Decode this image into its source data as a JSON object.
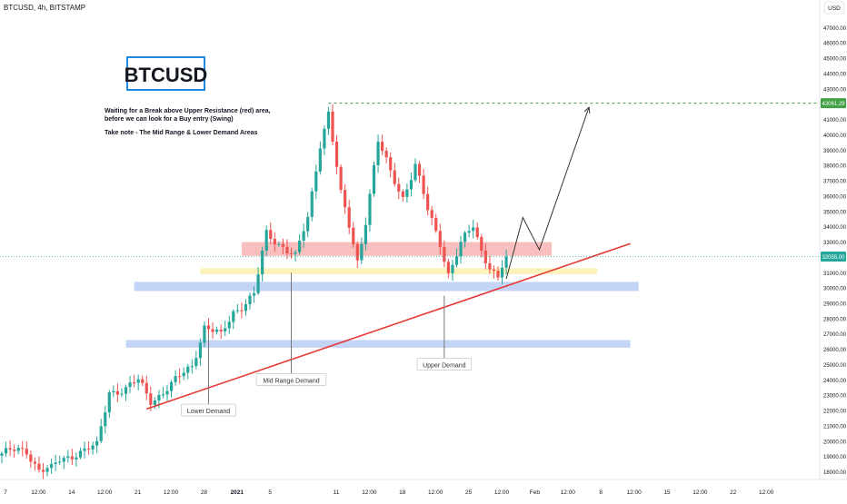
{
  "header": {
    "symbol_info": "BTCUSD, 4h, BITSTAMP"
  },
  "annotations": {
    "logo_text": "BTCUSD",
    "note_line1": "Waiting for a Break above Upper Resistance (red) area,",
    "note_line2": "before we can look for a Buy entry (Swing)",
    "note_line3": "Take note - The Mid Range & Lower Demand Areas",
    "labels": {
      "lower_demand": "Lower Demand",
      "mid_range_demand": "Mid Range Demand",
      "upper_demand": "Upper Demand"
    }
  },
  "colors": {
    "up": "#26a69a",
    "down": "#ef5350",
    "trendline": "#e53935",
    "resistance_zone": "#f8b4b4",
    "mid_zone": "#fdf0b0",
    "demand_zone": "#b9ccf4",
    "target_line": "#43a047",
    "current_line": "#26a69a",
    "logo_border": "#1e88e5"
  },
  "chart_data": {
    "type": "candlestick",
    "title": "",
    "xlabel": "",
    "ylabel": "",
    "currency_label": "USD",
    "ylim": [
      17500,
      48800
    ],
    "y_ticks": [
      18000,
      19000,
      20000,
      21000,
      22000,
      23000,
      24000,
      25000,
      26000,
      27000,
      28000,
      29000,
      30000,
      31000,
      32000,
      33000,
      34000,
      35000,
      36000,
      37000,
      38000,
      39000,
      40000,
      41000,
      42000,
      43000,
      44000,
      45000,
      46000,
      47000
    ],
    "y_tick_labels": [
      "18000.00",
      "19000.00",
      "20000.00",
      "21000.00",
      "22000.00",
      "23000.00",
      "24000.00",
      "25000.00",
      "26000.00",
      "27000.00",
      "28000.00",
      "29000.00",
      "30000.00",
      "31000.00",
      "32000.00",
      "33000.00",
      "34000.00",
      "35000.00",
      "36000.00",
      "37000.00",
      "38000.00",
      "39000.00",
      "40000.00",
      "41000.00",
      "42000.00",
      "43000.00",
      "44000.00",
      "45000.00",
      "46000.00",
      "47000.00"
    ],
    "x_tick_labels": [
      "7",
      "12:00",
      "14",
      "12:00",
      "21",
      "12:00",
      "28",
      "2021",
      "5",
      "11",
      "12:00",
      "18",
      "12:00",
      "25",
      "12:00",
      "Feb",
      "12:00",
      "8",
      "12:00",
      "15",
      "12:00",
      "22",
      "12:00"
    ],
    "x_tick_pos": [
      0,
      8,
      16,
      24,
      32,
      40,
      48,
      56,
      64,
      80,
      88,
      96,
      104,
      112,
      120,
      128,
      136,
      144,
      152,
      160,
      168,
      176,
      184
    ],
    "current_price_label": "32055.00",
    "target_price_label": "42061.29",
    "target_price": 42061.29,
    "current_price": 32055,
    "zones": [
      {
        "name": "Upper Resistance",
        "x_from": 58,
        "x_to": 133,
        "y_from": 32100,
        "y_to": 33000,
        "color_key": "resistance_zone"
      },
      {
        "name": "Mid Range",
        "x_from": 48,
        "x_to": 144,
        "y_from": 30900,
        "y_to": 31300,
        "color_key": "mid_zone"
      },
      {
        "name": "Upper Demand",
        "x_from": 32,
        "x_to": 154,
        "y_from": 29800,
        "y_to": 30400,
        "color_key": "demand_zone"
      },
      {
        "name": "Lower Demand",
        "x_from": 30,
        "x_to": 152,
        "y_from": 26100,
        "y_to": 26600,
        "color_key": "demand_zone"
      }
    ],
    "trendline": {
      "x1": 35,
      "y1": 22100,
      "x2": 152,
      "y2": 32900
    },
    "projection": [
      {
        "x": 122,
        "y": 30600
      },
      {
        "x": 126,
        "y": 34600
      },
      {
        "x": 130,
        "y": 32500
      },
      {
        "x": 142,
        "y": 41800
      }
    ],
    "label_positions": [
      {
        "key": "lower_demand",
        "x": 50,
        "y": 22000,
        "line_top_y": 27000
      },
      {
        "key": "mid_range_demand",
        "x": 70,
        "y": 24000,
        "line_top_y": 31000
      },
      {
        "key": "upper_demand",
        "x": 107,
        "y": 25000,
        "line_top_y": 29500
      }
    ],
    "anchors": [
      {
        "i": 0,
        "p": 19200
      },
      {
        "i": 6,
        "p": 19400
      },
      {
        "i": 9,
        "p": 18200
      },
      {
        "i": 12,
        "p": 18100
      },
      {
        "i": 14,
        "p": 18700
      },
      {
        "i": 18,
        "p": 19300
      },
      {
        "i": 23,
        "p": 19600
      },
      {
        "i": 26,
        "p": 23300
      },
      {
        "i": 30,
        "p": 23400
      },
      {
        "i": 33,
        "p": 23900
      },
      {
        "i": 36,
        "p": 22700
      },
      {
        "i": 41,
        "p": 23600
      },
      {
        "i": 46,
        "p": 25000
      },
      {
        "i": 49,
        "p": 27500
      },
      {
        "i": 53,
        "p": 26800
      },
      {
        "i": 56,
        "p": 28500
      },
      {
        "i": 61,
        "p": 29500
      },
      {
        "i": 64,
        "p": 33500
      },
      {
        "i": 68,
        "p": 32800
      },
      {
        "i": 71,
        "p": 32000
      },
      {
        "i": 74,
        "p": 34500
      },
      {
        "i": 77,
        "p": 39500
      },
      {
        "i": 79,
        "p": 41500
      },
      {
        "i": 82,
        "p": 36000
      },
      {
        "i": 84,
        "p": 34000
      },
      {
        "i": 86,
        "p": 31800
      },
      {
        "i": 88,
        "p": 34500
      },
      {
        "i": 91,
        "p": 39500
      },
      {
        "i": 94,
        "p": 37500
      },
      {
        "i": 97,
        "p": 36000
      },
      {
        "i": 100,
        "p": 38000
      },
      {
        "i": 103,
        "p": 35000
      },
      {
        "i": 106,
        "p": 33000
      },
      {
        "i": 108,
        "p": 31000
      },
      {
        "i": 111,
        "p": 32800
      },
      {
        "i": 114,
        "p": 34000
      },
      {
        "i": 116,
        "p": 32500
      },
      {
        "i": 118,
        "p": 31500
      },
      {
        "i": 120,
        "p": 30600
      },
      {
        "i": 122,
        "p": 32055
      }
    ]
  }
}
